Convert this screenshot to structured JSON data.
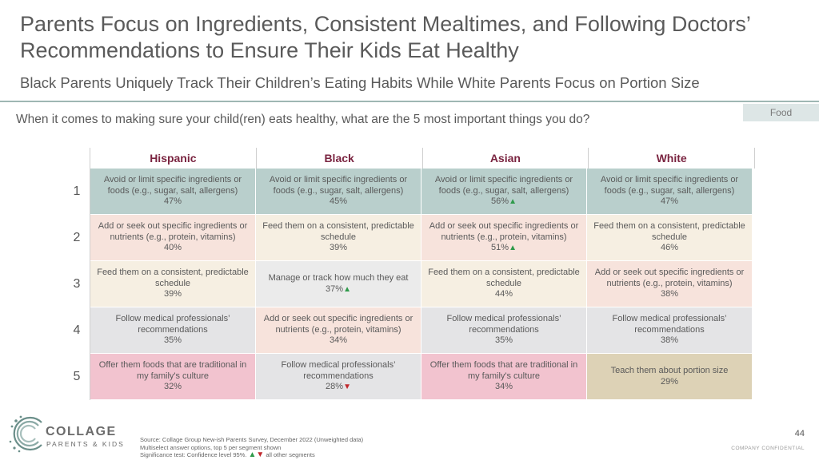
{
  "title": "Parents Focus on Ingredients, Consistent Mealtimes, and Following Doctors’ Recommendations to Ensure Their Kids Eat Healthy",
  "subtitle": "Black Parents Uniquely Track Their Children’s Eating Habits While White Parents Focus on Portion Size",
  "tag": "Food",
  "question": "When it comes to making sure your child(ren) eats healthy, what are the 5 most important things you do?",
  "columns": [
    "Hispanic",
    "Black",
    "Asian",
    "White"
  ],
  "rows": [
    {
      "rank": "1",
      "cells": [
        {
          "text": "Avoid or limit specific ingredients or foods (e.g., sugar, salt, allergens)",
          "pct": "47%",
          "sig": "",
          "color": "#b9cfcc"
        },
        {
          "text": "Avoid or limit specific ingredients or foods (e.g., sugar, salt, allergens)",
          "pct": "45%",
          "sig": "",
          "color": "#b9cfcc"
        },
        {
          "text": "Avoid or limit specific ingredients or foods (e.g., sugar, salt, allergens)",
          "pct": "56%",
          "sig": "▲",
          "color": "#b9cfcc"
        },
        {
          "text": "Avoid or limit specific ingredients or foods (e.g., sugar, salt, allergens)",
          "pct": "47%",
          "sig": "",
          "color": "#b9cfcc"
        }
      ]
    },
    {
      "rank": "2",
      "cells": [
        {
          "text": "Add or seek out specific ingredients or nutrients (e.g., protein, vitamins)",
          "pct": "40%",
          "sig": "",
          "color": "#f7e3dc"
        },
        {
          "text": "Feed them on a consistent, predictable schedule",
          "pct": "39%",
          "sig": "",
          "color": "#f6efe2"
        },
        {
          "text": "Add or seek out specific ingredients or nutrients (e.g., protein, vitamins)",
          "pct": "51%",
          "sig": "▲",
          "color": "#f7e3dc"
        },
        {
          "text": "Feed them on a consistent, predictable schedule",
          "pct": "46%",
          "sig": "",
          "color": "#f6efe2"
        }
      ]
    },
    {
      "rank": "3",
      "cells": [
        {
          "text": "Feed them on a consistent, predictable schedule",
          "pct": "39%",
          "sig": "",
          "color": "#f6efe2"
        },
        {
          "text": "Manage or track how much they eat",
          "pct": "37%",
          "sig": "▲",
          "color": "#ebebeb"
        },
        {
          "text": "Feed them on a consistent, predictable schedule",
          "pct": "44%",
          "sig": "",
          "color": "#f6efe2"
        },
        {
          "text": "Add or seek out specific ingredients or nutrients (e.g., protein, vitamins)",
          "pct": "38%",
          "sig": "",
          "color": "#f7e3dc"
        }
      ]
    },
    {
      "rank": "4",
      "cells": [
        {
          "text": "Follow medical professionals’ recommendations",
          "pct": "35%",
          "sig": "",
          "color": "#e4e4e6"
        },
        {
          "text": "Add or seek out specific ingredients or nutrients (e.g., protein, vitamins)",
          "pct": "34%",
          "sig": "",
          "color": "#f7e3dc"
        },
        {
          "text": "Follow medical professionals’ recommendations",
          "pct": "35%",
          "sig": "",
          "color": "#e4e4e6"
        },
        {
          "text": "Follow medical professionals’ recommendations",
          "pct": "38%",
          "sig": "",
          "color": "#e4e4e6"
        }
      ]
    },
    {
      "rank": "5",
      "cells": [
        {
          "text": "Offer them foods that are traditional in my family's culture",
          "pct": "32%",
          "sig": "",
          "color": "#f2c3cf"
        },
        {
          "text": "Follow medical professionals’ recommendations",
          "pct": "28%",
          "sig": "▼",
          "color": "#e4e4e6"
        },
        {
          "text": "Offer them foods that are traditional in my family's culture",
          "pct": "34%",
          "sig": "",
          "color": "#f2c3cf"
        },
        {
          "text": "Teach them about portion size",
          "pct": "29%",
          "sig": "",
          "color": "#ddd2b6"
        }
      ]
    }
  ],
  "logo": {
    "word": "COLLAGE",
    "sub": "PARENTS & KIDS"
  },
  "source": {
    "line1": "Source: Collage Group New-ish Parents Survey, December 2022 (Unweighted data)",
    "line2": "Multiselect answer options, top 5 per segment shown",
    "line3_prefix": "Significance test: Confidence level 95%.",
    "line3_up": "▲",
    "line3_down": "▼",
    "line3_suffix": "all other segments"
  },
  "page_number": "44",
  "confidential": "COMPANY CONFIDENTIAL",
  "colors": {
    "header_text": "#7a2440",
    "sig_up": "#2e9a4a",
    "sig_down": "#c0282d"
  }
}
